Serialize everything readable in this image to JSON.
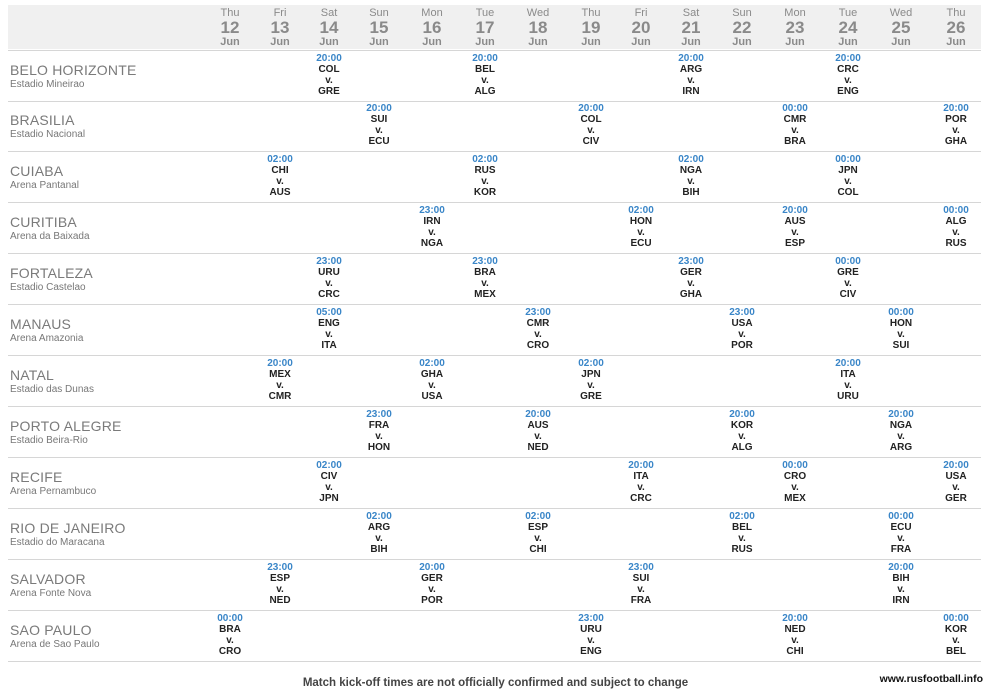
{
  "days": [
    {
      "wd": "Thu",
      "d": "12",
      "m": "Jun"
    },
    {
      "wd": "Fri",
      "d": "13",
      "m": "Jun"
    },
    {
      "wd": "Sat",
      "d": "14",
      "m": "Jun"
    },
    {
      "wd": "Sun",
      "d": "15",
      "m": "Jun"
    },
    {
      "wd": "Mon",
      "d": "16",
      "m": "Jun"
    },
    {
      "wd": "Tue",
      "d": "17",
      "m": "Jun"
    },
    {
      "wd": "Wed",
      "d": "18",
      "m": "Jun"
    },
    {
      "wd": "Thu",
      "d": "19",
      "m": "Jun"
    },
    {
      "wd": "Fri",
      "d": "20",
      "m": "Jun"
    },
    {
      "wd": "Sat",
      "d": "21",
      "m": "Jun"
    },
    {
      "wd": "Sun",
      "d": "22",
      "m": "Jun"
    },
    {
      "wd": "Mon",
      "d": "23",
      "m": "Jun"
    },
    {
      "wd": "Tue",
      "d": "24",
      "m": "Jun"
    },
    {
      "wd": "Wed",
      "d": "25",
      "m": "Jun"
    },
    {
      "wd": "Thu",
      "d": "26",
      "m": "Jun"
    }
  ],
  "venues": [
    {
      "city": "BELO HORIZONTE",
      "stadium": "Estadio Mineirao",
      "matches": [
        {
          "day": 2,
          "time": "20:00",
          "home": "COL",
          "away": "GRE"
        },
        {
          "day": 5,
          "time": "20:00",
          "home": "BEL",
          "away": "ALG"
        },
        {
          "day": 9,
          "time": "20:00",
          "home": "ARG",
          "away": "IRN"
        },
        {
          "day": 12,
          "time": "20:00",
          "home": "CRC",
          "away": "ENG"
        }
      ]
    },
    {
      "city": "BRASILIA",
      "stadium": "Estadio Nacional",
      "matches": [
        {
          "day": 3,
          "time": "20:00",
          "home": "SUI",
          "away": "ECU"
        },
        {
          "day": 7,
          "time": "20:00",
          "home": "COL",
          "away": "CIV"
        },
        {
          "day": 11,
          "time": "00:00",
          "home": "CMR",
          "away": "BRA"
        },
        {
          "day": 14,
          "time": "20:00",
          "home": "POR",
          "away": "GHA"
        }
      ]
    },
    {
      "city": "CUIABA",
      "stadium": "Arena Pantanal",
      "matches": [
        {
          "day": 1,
          "time": "02:00",
          "home": "CHI",
          "away": "AUS"
        },
        {
          "day": 5,
          "time": "02:00",
          "home": "RUS",
          "away": "KOR"
        },
        {
          "day": 9,
          "time": "02:00",
          "home": "NGA",
          "away": "BIH"
        },
        {
          "day": 12,
          "time": "00:00",
          "home": "JPN",
          "away": "COL"
        }
      ]
    },
    {
      "city": "CURITIBA",
      "stadium": "Arena da Baixada",
      "matches": [
        {
          "day": 4,
          "time": "23:00",
          "home": "IRN",
          "away": "NGA"
        },
        {
          "day": 8,
          "time": "02:00",
          "home": "HON",
          "away": "ECU"
        },
        {
          "day": 11,
          "time": "20:00",
          "home": "AUS",
          "away": "ESP"
        },
        {
          "day": 14,
          "time": "00:00",
          "home": "ALG",
          "away": "RUS"
        }
      ]
    },
    {
      "city": "FORTALEZA",
      "stadium": "Estadio Castelao",
      "matches": [
        {
          "day": 2,
          "time": "23:00",
          "home": "URU",
          "away": "CRC"
        },
        {
          "day": 5,
          "time": "23:00",
          "home": "BRA",
          "away": "MEX"
        },
        {
          "day": 9,
          "time": "23:00",
          "home": "GER",
          "away": "GHA"
        },
        {
          "day": 12,
          "time": "00:00",
          "home": "GRE",
          "away": "CIV"
        }
      ]
    },
    {
      "city": "MANAUS",
      "stadium": "Arena Amazonia",
      "matches": [
        {
          "day": 2,
          "time": "05:00",
          "home": "ENG",
          "away": "ITA"
        },
        {
          "day": 6,
          "time": "23:00",
          "home": "CMR",
          "away": "CRO"
        },
        {
          "day": 10,
          "time": "23:00",
          "home": "USA",
          "away": "POR"
        },
        {
          "day": 13,
          "time": "00:00",
          "home": "HON",
          "away": "SUI"
        }
      ]
    },
    {
      "city": "NATAL",
      "stadium": "Estadio das Dunas",
      "matches": [
        {
          "day": 1,
          "time": "20:00",
          "home": "MEX",
          "away": "CMR"
        },
        {
          "day": 4,
          "time": "02:00",
          "home": "GHA",
          "away": "USA"
        },
        {
          "day": 7,
          "time": "02:00",
          "home": "JPN",
          "away": "GRE"
        },
        {
          "day": 12,
          "time": "20:00",
          "home": "ITA",
          "away": "URU"
        }
      ]
    },
    {
      "city": "PORTO ALEGRE",
      "stadium": "Estadio Beira-Rio",
      "matches": [
        {
          "day": 3,
          "time": "23:00",
          "home": "FRA",
          "away": "HON"
        },
        {
          "day": 6,
          "time": "20:00",
          "home": "AUS",
          "away": "NED"
        },
        {
          "day": 10,
          "time": "20:00",
          "home": "KOR",
          "away": "ALG"
        },
        {
          "day": 13,
          "time": "20:00",
          "home": "NGA",
          "away": "ARG"
        }
      ]
    },
    {
      "city": "RECIFE",
      "stadium": "Arena Pernambuco",
      "matches": [
        {
          "day": 2,
          "time": "02:00",
          "home": "CIV",
          "away": "JPN"
        },
        {
          "day": 8,
          "time": "20:00",
          "home": "ITA",
          "away": "CRC"
        },
        {
          "day": 11,
          "time": "00:00",
          "home": "CRO",
          "away": "MEX"
        },
        {
          "day": 14,
          "time": "20:00",
          "home": "USA",
          "away": "GER"
        }
      ]
    },
    {
      "city": "RIO DE JANEIRO",
      "stadium": "Estadio do Maracana",
      "matches": [
        {
          "day": 3,
          "time": "02:00",
          "home": "ARG",
          "away": "BIH"
        },
        {
          "day": 6,
          "time": "02:00",
          "home": "ESP",
          "away": "CHI"
        },
        {
          "day": 10,
          "time": "02:00",
          "home": "BEL",
          "away": "RUS"
        },
        {
          "day": 13,
          "time": "00:00",
          "home": "ECU",
          "away": "FRA"
        }
      ]
    },
    {
      "city": "SALVADOR",
      "stadium": "Arena Fonte Nova",
      "matches": [
        {
          "day": 1,
          "time": "23:00",
          "home": "ESP",
          "away": "NED"
        },
        {
          "day": 4,
          "time": "20:00",
          "home": "GER",
          "away": "POR"
        },
        {
          "day": 8,
          "time": "23:00",
          "home": "SUI",
          "away": "FRA"
        },
        {
          "day": 13,
          "time": "20:00",
          "home": "BIH",
          "away": "IRN"
        }
      ]
    },
    {
      "city": "SAO PAULO",
      "stadium": "Arena de Sao Paulo",
      "matches": [
        {
          "day": 0,
          "time": "00:00",
          "home": "BRA",
          "away": "CRO"
        },
        {
          "day": 7,
          "time": "23:00",
          "home": "URU",
          "away": "ENG"
        },
        {
          "day": 11,
          "time": "20:00",
          "home": "NED",
          "away": "CHI"
        },
        {
          "day": 14,
          "time": "00:00",
          "home": "KOR",
          "away": "BEL"
        }
      ]
    }
  ],
  "vs_label": "v.",
  "footnote": "Match kick-off times are not officially confirmed and subject to change",
  "watermark": "www.rusfootball.info",
  "colors": {
    "time": "#3a86c8",
    "team": "#222222",
    "header_bg": "#f0f0f0",
    "row_border": "#d6d6d6"
  }
}
